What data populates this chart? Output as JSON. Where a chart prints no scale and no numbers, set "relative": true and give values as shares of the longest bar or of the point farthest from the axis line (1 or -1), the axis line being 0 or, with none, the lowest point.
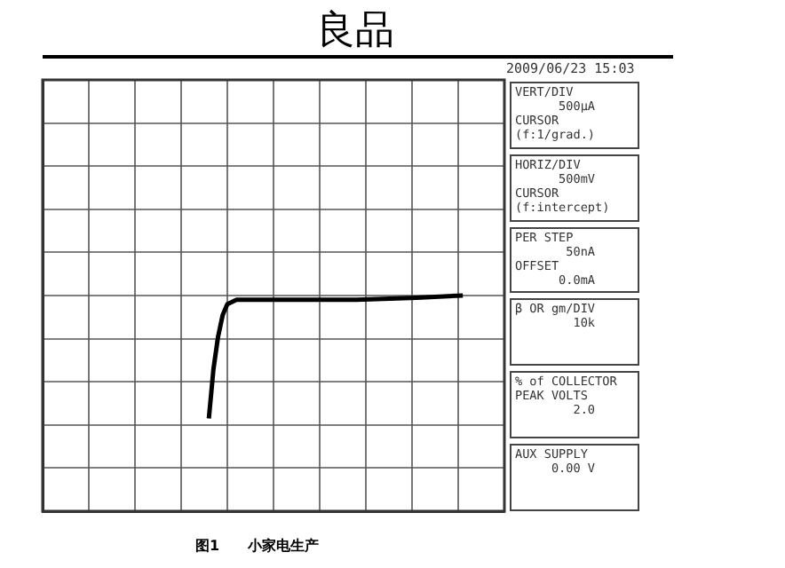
{
  "chart_data": {
    "type": "line",
    "title": "良品",
    "relative": true,
    "grid": true,
    "legend": false,
    "marker": "none",
    "line_style": "solid",
    "tick_labels": false,
    "categories": [
      null,
      null,
      null,
      null,
      null,
      null,
      null,
      null,
      null,
      null,
      null,
      null,
      null,
      null,
      null,
      null,
      null,
      null,
      null,
      null,
      null,
      null,
      null,
      null,
      null,
      null,
      null,
      null,
      null,
      null,
      null,
      null,
      null,
      null,
      null,
      null,
      null,
      null,
      null,
      null,
      null,
      null,
      null,
      null,
      null,
      null,
      null,
      null,
      null,
      null,
      null,
      null,
      null,
      null,
      null,
      null,
      null,
      null,
      null,
      null,
      null,
      null,
      null,
      null,
      null,
      null,
      null,
      null,
      null,
      null,
      null,
      null,
      null,
      null,
      null,
      null,
      null,
      null,
      null,
      null,
      null,
      null,
      null,
      null,
      null,
      null,
      null,
      null,
      null,
      null,
      null,
      null,
      null,
      null,
      null,
      null,
      null,
      null,
      null,
      null,
      null
    ],
    "series": [
      {
        "color": "#000000",
        "values": [
          null,
          null,
          null,
          null,
          null,
          null,
          null,
          null,
          null,
          null,
          null,
          null,
          null,
          null,
          null,
          null,
          null,
          null,
          null,
          null,
          null,
          null,
          null,
          null,
          null,
          null,
          null,
          null,
          null,
          null,
          null,
          null,
          null,
          null,
          null,
          null,
          0.43,
          0.66,
          0.81,
          0.91,
          0.96,
          0.97,
          0.98,
          null,
          null,
          null,
          null,
          null,
          null,
          null,
          null,
          null,
          null,
          null,
          null,
          0.98,
          null,
          null,
          null,
          null,
          null,
          null,
          null,
          null,
          null,
          null,
          null,
          null,
          0.98,
          null,
          null,
          null,
          null,
          null,
          null,
          null,
          null,
          null,
          null,
          null,
          null,
          0.99,
          null,
          null,
          null,
          null,
          null,
          null,
          null,
          null,
          null,
          1,
          null,
          null,
          null,
          null,
          null,
          null,
          null,
          null,
          null
        ]
      }
    ],
    "annotations": [
      "2009/06/23 15:03",
      "VERT/DIV\n      500µA\nCURSOR\n(f:1/grad.)",
      "HORIZ/DIV\n      500mV\nCURSOR\n(f:intercept)",
      "PER STEP\n       50nA\nOFFSET\n      0.0mA",
      "β OR gm/DIV\n        10k",
      "% of COLLECTOR\nPEAK VOLTS\n        2.0",
      "AUX SUPPLY\n     0.00 V",
      "图1　　小家电生产"
    ]
  }
}
